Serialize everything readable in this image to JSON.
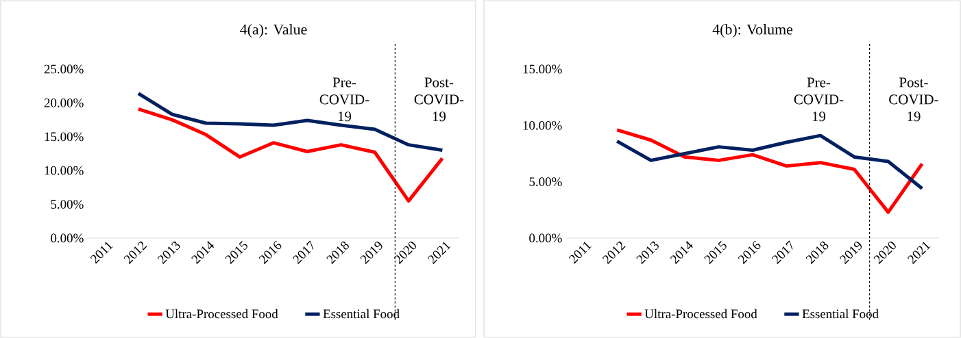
{
  "chart_data": [
    {
      "type": "line",
      "title": "4(a): Value",
      "x": [
        2012,
        2013,
        2014,
        2015,
        2016,
        2017,
        2018,
        2019,
        2020,
        2021
      ],
      "xlim": [
        2010.5,
        2021.5
      ],
      "xticks": [
        2011,
        2012,
        2013,
        2014,
        2015,
        2016,
        2017,
        2018,
        2019,
        2020,
        2021
      ],
      "ylim": [
        0,
        25
      ],
      "yticks": [
        {
          "value": 0,
          "label": "0.00%"
        },
        {
          "value": 5,
          "label": "5.00%"
        },
        {
          "value": 10,
          "label": "10.00%"
        },
        {
          "value": 15,
          "label": "15.00%"
        },
        {
          "value": 20,
          "label": "20.00%"
        },
        {
          "value": 25,
          "label": "25.00%"
        }
      ],
      "series": [
        {
          "name": "Ultra-Processed Food",
          "color": "#ff0000",
          "values": [
            19.1,
            17.5,
            15.3,
            12.0,
            14.1,
            12.8,
            13.8,
            12.7,
            5.5,
            11.8
          ]
        },
        {
          "name": "Essential Food",
          "color": "#002060",
          "values": [
            21.4,
            18.3,
            17.0,
            16.9,
            16.7,
            17.4,
            16.7,
            16.1,
            13.8,
            13.0
          ]
        }
      ],
      "ref_lines": [
        {
          "axis": "x",
          "value": 2019.6,
          "color": "#000000",
          "line_style": "dashed"
        }
      ],
      "annotations": [
        "Pre-COVID-19",
        "Post-COVID-19"
      ],
      "legend": "bottom"
    },
    {
      "type": "line",
      "title": "4(b): Volume",
      "x": [
        2012,
        2013,
        2014,
        2015,
        2016,
        2017,
        2018,
        2019,
        2020,
        2021
      ],
      "xlim": [
        2010.5,
        2021.5
      ],
      "xticks": [
        2011,
        2012,
        2013,
        2014,
        2015,
        2016,
        2017,
        2018,
        2019,
        2020,
        2021
      ],
      "ylim": [
        0,
        15
      ],
      "yticks": [
        {
          "value": 0,
          "label": "0.00%"
        },
        {
          "value": 5,
          "label": "5.00%"
        },
        {
          "value": 10,
          "label": "10.00%"
        },
        {
          "value": 15,
          "label": "15.00%"
        }
      ],
      "series": [
        {
          "name": "Ultra-Processed Food",
          "color": "#ff0000",
          "values": [
            9.6,
            8.7,
            7.2,
            6.9,
            7.4,
            6.4,
            6.7,
            6.1,
            2.3,
            6.6
          ]
        },
        {
          "name": "Essential Food",
          "color": "#002060",
          "values": [
            8.6,
            6.9,
            7.5,
            8.1,
            7.8,
            8.5,
            9.1,
            7.2,
            6.8,
            4.4
          ]
        }
      ],
      "ref_lines": [
        {
          "axis": "x",
          "value": 2019.45,
          "color": "#000000",
          "line_style": "dashed"
        }
      ],
      "annotations": [
        "Pre-COVID-19",
        "Post-COVID-19"
      ],
      "legend": "bottom"
    }
  ]
}
